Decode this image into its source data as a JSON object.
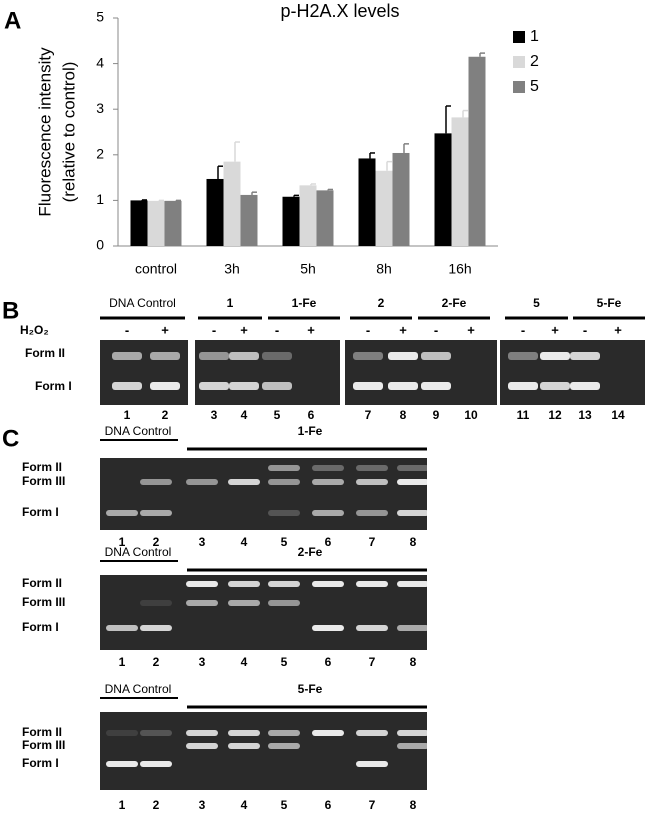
{
  "panel_labels": [
    "A",
    "B",
    "C"
  ],
  "chart_data": {
    "type": "bar",
    "title": "p-H2A.X levels",
    "ylabel": [
      "Fluorescence intensity",
      "(relative to control)"
    ],
    "categories": [
      "control",
      "3h",
      "5h",
      "8h",
      "16h"
    ],
    "series": [
      {
        "name": "1",
        "color": "#000000",
        "values": [
          1.0,
          1.47,
          1.08,
          1.92,
          2.47
        ],
        "errors": [
          0.01,
          0.28,
          0.03,
          0.12,
          0.6
        ]
      },
      {
        "name": "2",
        "color": "#d9d9d9",
        "values": [
          0.99,
          1.85,
          1.33,
          1.65,
          2.82
        ],
        "errors": [
          0.01,
          0.43,
          0.03,
          0.2,
          0.15
        ]
      },
      {
        "name": "5",
        "color": "#808080",
        "values": [
          0.99,
          1.12,
          1.22,
          2.04,
          4.15
        ],
        "errors": [
          0.01,
          0.06,
          0.02,
          0.2,
          0.08
        ]
      }
    ],
    "ylim": [
      0,
      5
    ],
    "yticks": [
      0,
      1,
      2,
      3,
      4,
      5
    ],
    "grid": false,
    "legend": "right"
  },
  "gel_b": {
    "groups": [
      "DNA Control",
      "1",
      "1-Fe",
      "2",
      "2-Fe",
      "5",
      "5-Fe"
    ],
    "treatment_label": "H₂O₂",
    "treatments": [
      "-",
      "+",
      "-",
      "+",
      "-",
      "+",
      "-",
      "+",
      "-",
      "+",
      "-",
      "+",
      "-",
      "+"
    ],
    "form_labels": [
      "Form II",
      "Form I"
    ],
    "lanes": [
      "1",
      "2",
      "3",
      "4",
      "5",
      "6",
      "7",
      "8",
      "9",
      "10",
      "11",
      "12",
      "13",
      "14"
    ]
  },
  "gel_c": [
    {
      "control_label": "DNA Control",
      "compound_label": "1-Fe",
      "form_labels": [
        "Form II",
        "Form III",
        "Form I"
      ],
      "lanes": [
        "1",
        "2",
        "3",
        "4",
        "5",
        "6",
        "7",
        "8"
      ]
    },
    {
      "control_label": "DNA Control",
      "compound_label": "2-Fe",
      "form_labels": [
        "Form II",
        "Form III",
        "Form  I"
      ],
      "lanes": [
        "1",
        "2",
        "3",
        "4",
        "5",
        "6",
        "7",
        "8"
      ]
    },
    {
      "control_label": "DNA Control",
      "compound_label": "5-Fe",
      "form_labels": [
        "Form II",
        "Form III",
        "Form  I"
      ],
      "lanes": [
        "1",
        "2",
        "3",
        "4",
        "5",
        "6",
        "7",
        "8"
      ]
    }
  ]
}
